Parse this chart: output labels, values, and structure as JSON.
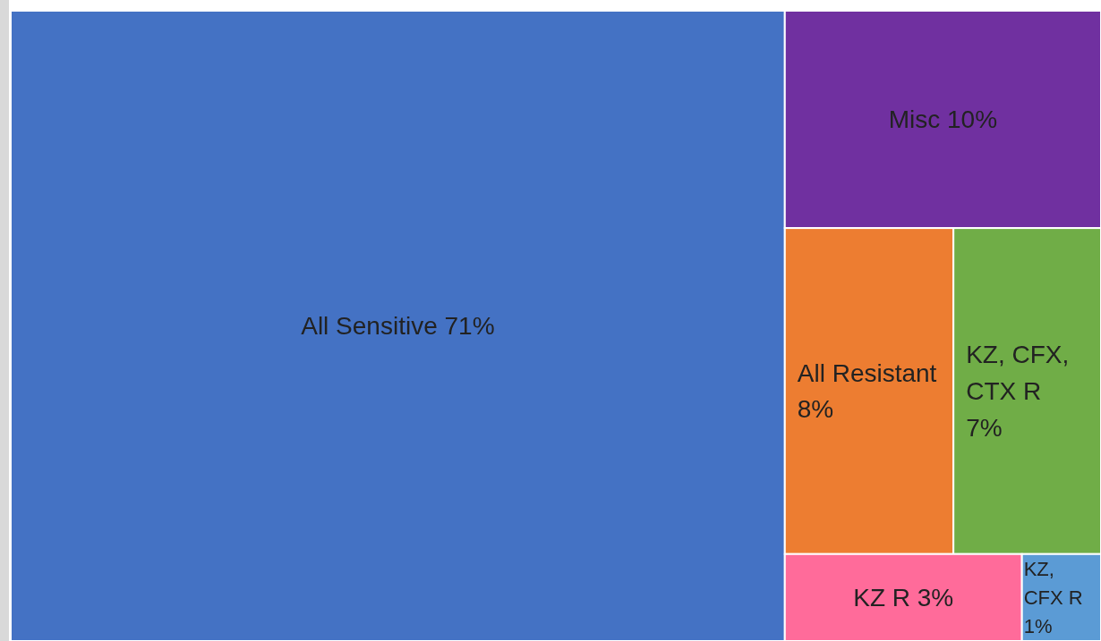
{
  "chart_data": {
    "type": "other",
    "categories": [
      "All Sensitive",
      "Misc",
      "All Resistant",
      "KZ, CFX, CTX R",
      "KZ R",
      "KZ, CFX R"
    ],
    "values": [
      71,
      10,
      8,
      7,
      3,
      1
    ],
    "value_labels": [
      "71%",
      "10%",
      "8%",
      "7%",
      "3%",
      "1%"
    ],
    "colors": [
      "#4472c4",
      "#7030a0",
      "#ed7d31",
      "#70ad47",
      "#ff6b9a",
      "#5b9bd5"
    ]
  }
}
